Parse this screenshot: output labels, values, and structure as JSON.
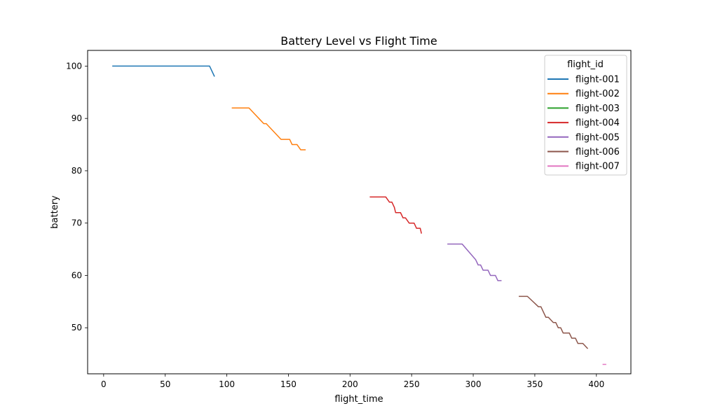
{
  "chart_data": {
    "type": "line",
    "title": "Battery Level vs Flight Time",
    "xlabel": "flight_time",
    "ylabel": "battery",
    "xlim": [
      -13,
      428
    ],
    "ylim": [
      41.2,
      103
    ],
    "xticks": [
      0,
      50,
      100,
      150,
      200,
      250,
      300,
      350,
      400
    ],
    "yticks": [
      50,
      60,
      70,
      80,
      90,
      100
    ],
    "grid": false,
    "legend": {
      "title": "flight_id",
      "position": "top-right"
    },
    "series": [
      {
        "name": "flight-001",
        "color": "#1f77b4",
        "points": [
          [
            7,
            100
          ],
          [
            86,
            100
          ],
          [
            90,
            98
          ]
        ]
      },
      {
        "name": "flight-002",
        "color": "#ff7f0e",
        "points": [
          [
            104,
            92
          ],
          [
            118,
            92
          ],
          [
            122,
            91
          ],
          [
            126,
            90
          ],
          [
            130,
            89
          ],
          [
            132,
            89
          ],
          [
            144,
            86
          ],
          [
            151,
            86
          ],
          [
            153,
            85
          ],
          [
            157,
            85
          ],
          [
            160,
            84
          ],
          [
            164,
            84
          ]
        ]
      },
      {
        "name": "flight-003",
        "color": "#2ca02c",
        "points": []
      },
      {
        "name": "flight-004",
        "color": "#d62728",
        "points": [
          [
            216,
            75
          ],
          [
            229,
            75
          ],
          [
            232,
            74
          ],
          [
            234,
            74
          ],
          [
            236,
            73
          ],
          [
            237,
            72
          ],
          [
            241,
            72
          ],
          [
            243,
            71
          ],
          [
            245,
            71
          ],
          [
            248,
            70
          ],
          [
            252,
            70
          ],
          [
            254,
            69
          ],
          [
            257,
            69
          ],
          [
            258,
            68
          ]
        ]
      },
      {
        "name": "flight-005",
        "color": "#9467bd",
        "points": [
          [
            279,
            66
          ],
          [
            291,
            66
          ],
          [
            302,
            63
          ],
          [
            304,
            62
          ],
          [
            306,
            62
          ],
          [
            308,
            61
          ],
          [
            312,
            61
          ],
          [
            314,
            60
          ],
          [
            318,
            60
          ],
          [
            320,
            59
          ],
          [
            323,
            59
          ]
        ]
      },
      {
        "name": "flight-006",
        "color": "#8c564b",
        "points": [
          [
            337,
            56
          ],
          [
            344,
            56
          ],
          [
            353,
            54
          ],
          [
            355,
            54
          ],
          [
            359,
            52
          ],
          [
            361,
            52
          ],
          [
            365,
            51
          ],
          [
            367,
            51
          ],
          [
            369,
            50
          ],
          [
            371,
            50
          ],
          [
            373,
            49
          ],
          [
            378,
            49
          ],
          [
            380,
            48
          ],
          [
            383,
            48
          ],
          [
            385,
            47
          ],
          [
            389,
            47
          ],
          [
            393,
            46
          ]
        ]
      },
      {
        "name": "flight-007",
        "color": "#e377c2",
        "points": [
          [
            405,
            43
          ],
          [
            408,
            43
          ]
        ]
      }
    ]
  }
}
